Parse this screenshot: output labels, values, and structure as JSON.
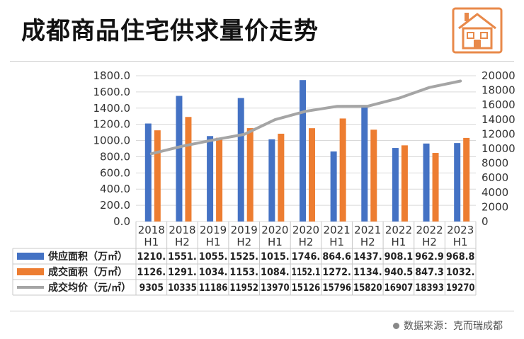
{
  "title": "成都商品住宅供求量价走势",
  "source": "数据来源：克而瑞成都",
  "icon": "house-icon",
  "colors": {
    "supply": "#4472C4",
    "deal": "#ED7D31",
    "price": "#A5A5A5",
    "accent": "#E8894A"
  },
  "chart_data": {
    "type": "bar",
    "categories": [
      [
        "2018",
        "H1"
      ],
      [
        "2018",
        "H2"
      ],
      [
        "2019",
        "H1"
      ],
      [
        "2019",
        "H2"
      ],
      [
        "2020",
        "H1"
      ],
      [
        "2020",
        "H2"
      ],
      [
        "2021",
        "H1"
      ],
      [
        "2021",
        "H2"
      ],
      [
        "2022",
        "H1"
      ],
      [
        "2022",
        "H2"
      ],
      [
        "2023",
        "H1"
      ]
    ],
    "series": [
      {
        "name": "供应面积（万㎡）",
        "type": "bar",
        "axis": "left",
        "values": [
          1210,
          1551,
          1055,
          1525,
          1015,
          1746,
          864.6,
          1437,
          908.1,
          962.9,
          968.8
        ],
        "labels": [
          "1210.",
          "1551.",
          "1055.",
          "1525.",
          "1015.",
          "1746.",
          "864.6",
          "1437.",
          "908.1",
          "962.9",
          "968.8"
        ]
      },
      {
        "name": "成交面积（万㎡）",
        "type": "bar",
        "axis": "left",
        "values": [
          1126,
          1291,
          1034,
          1153,
          1084,
          1152.1,
          1272,
          1134,
          940.5,
          847.3,
          1032
        ],
        "labels": [
          "1126.",
          "1291.",
          "1034.",
          "1153.",
          "1084.",
          "1152.1",
          "1272.",
          "1134.",
          "940.5",
          "847.3",
          "1032."
        ]
      },
      {
        "name": "成交均价（元/㎡）",
        "type": "line",
        "axis": "right",
        "values": [
          9305,
          10335,
          11186,
          11952,
          13970,
          15126,
          15796,
          15820,
          16907,
          18393,
          19270
        ],
        "labels": [
          "9305",
          "10335",
          "11186",
          "11952",
          "13970",
          "15126",
          "15796",
          "15820",
          "16907",
          "18393",
          "19270"
        ]
      }
    ],
    "y_left": {
      "ticks": [
        "0.0",
        "200.0",
        "400.0",
        "600.0",
        "800.0",
        "1000.0",
        "1200.0",
        "1400.0",
        "1600.0",
        "1800.0"
      ],
      "min": 0,
      "max": 1800
    },
    "y_right": {
      "ticks": [
        "0",
        "2000",
        "4000",
        "6000",
        "8000",
        "10000",
        "12000",
        "14000",
        "16000",
        "18000",
        "20000"
      ],
      "min": 0,
      "max": 20000
    },
    "grid": true,
    "legend": "data-table"
  }
}
